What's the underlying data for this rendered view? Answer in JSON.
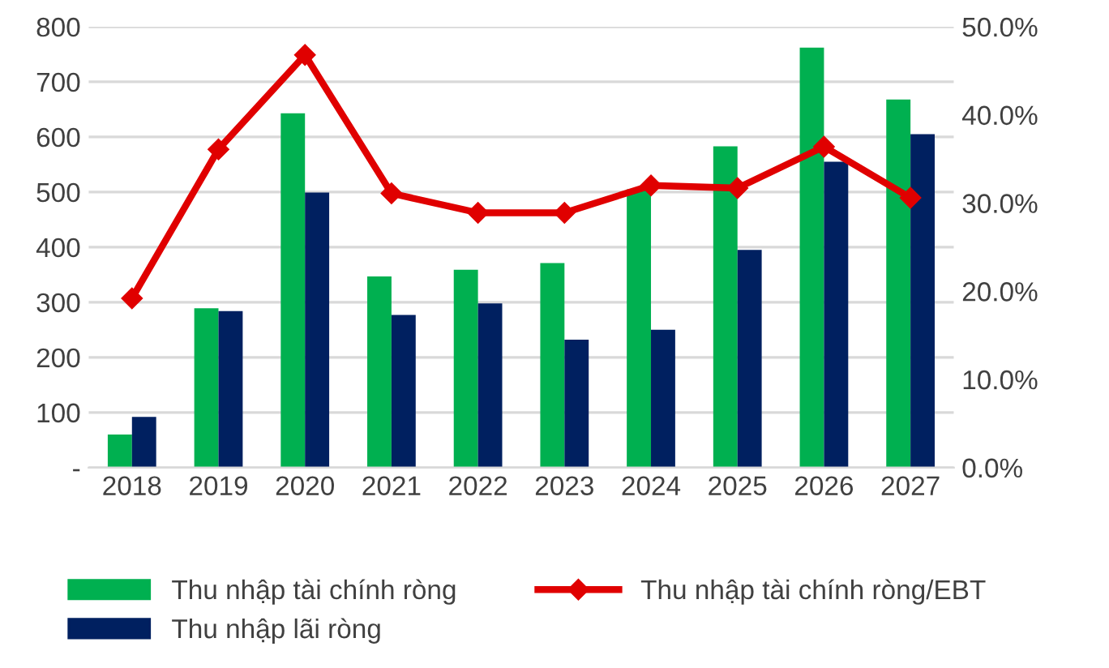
{
  "chart_data": {
    "type": "bar",
    "categories": [
      "2018",
      "2019",
      "2020",
      "2021",
      "2022",
      "2023",
      "2024",
      "2025",
      "2026",
      "2027"
    ],
    "series": [
      {
        "name": "Thu nhập tài chính ròng",
        "color": "#00b050",
        "values": [
          60,
          289,
          643,
          347,
          359,
          371,
          505,
          583,
          762,
          668
        ]
      },
      {
        "name": "Thu nhập lãi ròng",
        "color": "#002060",
        "values": [
          92,
          284,
          499,
          277,
          298,
          232,
          250,
          395,
          555,
          605
        ]
      },
      {
        "name": "Thu nhập tài chính ròng/EBT",
        "color": "#e00000",
        "type": "line",
        "axis": "y2",
        "marker": "diamond",
        "values": [
          19.2,
          36.1,
          46.8,
          31.1,
          28.9,
          28.9,
          32.0,
          31.7,
          36.4,
          30.6
        ]
      }
    ],
    "ylim": [
      0,
      800
    ],
    "yticks": [
      {
        "value": 0,
        "label": "-"
      },
      100,
      200,
      300,
      400,
      500,
      600,
      700,
      800
    ],
    "y2lim": [
      0,
      50
    ],
    "y2ticks": [
      {
        "value": 0,
        "label": "0.0%"
      },
      {
        "value": 10,
        "label": "10.0%"
      },
      {
        "value": 20,
        "label": "20.0%"
      },
      {
        "value": 30,
        "label": "30.0%"
      },
      {
        "value": 40,
        "label": "40.0%"
      },
      {
        "value": 50,
        "label": "50.0%"
      }
    ],
    "grid": "y",
    "legend": "bottom"
  }
}
